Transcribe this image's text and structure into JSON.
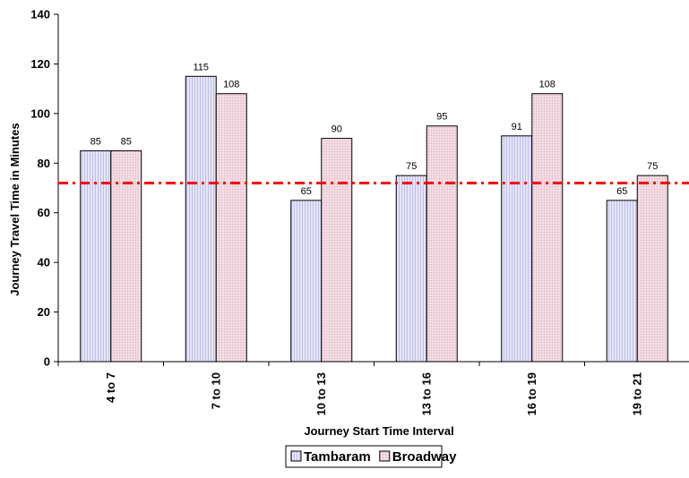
{
  "chart_data": {
    "type": "bar",
    "categories": [
      "4 to 7",
      "7 to 10",
      "10 to 13",
      "13 to 16",
      "16 to 19",
      "19 to 21"
    ],
    "series": [
      {
        "name": "Tambaram",
        "values": [
          85,
          115,
          65,
          75,
          91,
          65
        ],
        "color": "#e6e6fa",
        "hatch": "#b3b3e6"
      },
      {
        "name": "Broadway",
        "values": [
          85,
          108,
          90,
          95,
          108,
          75
        ],
        "color": "#f3dce3",
        "hatch": "#d9a8b6"
      }
    ],
    "xlabel": "Journey Start Time Interval",
    "ylabel": "Journey Travel Time in Minutes",
    "ylim": [
      0,
      140
    ],
    "yticks": [
      0,
      20,
      40,
      60,
      80,
      100,
      120,
      140
    ],
    "reference_line": {
      "value": 72,
      "color": "#ff0000",
      "style": "dash-dot"
    },
    "grid": false,
    "legend_position": "bottom"
  }
}
